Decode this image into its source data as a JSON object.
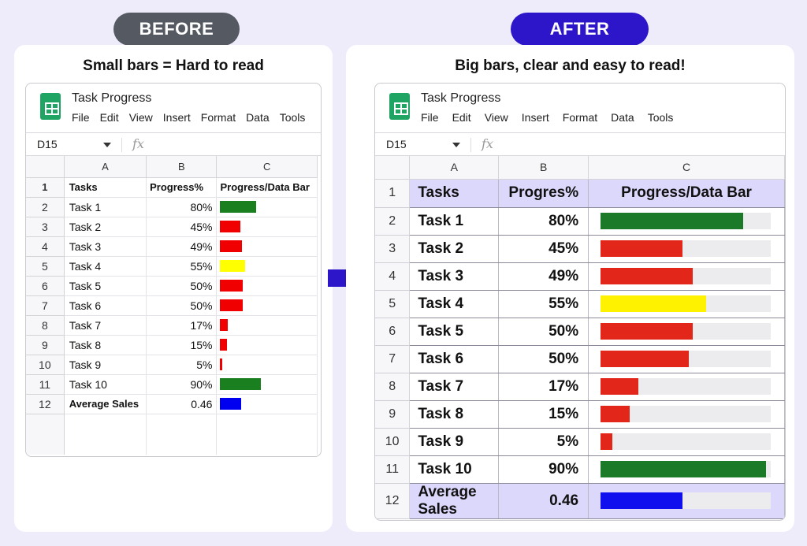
{
  "before": {
    "badge": "BEFORE",
    "caption": "Small bars = Hard to read",
    "sheet": {
      "doc_title": "Task Progress",
      "menu": [
        "File",
        "Edit",
        "View",
        "Insert",
        "Format",
        "Data",
        "Tools"
      ],
      "cell_ref": "D15",
      "fx": "fx",
      "columns": [
        "A",
        "B",
        "C"
      ],
      "header": {
        "num": "1",
        "a": "Tasks",
        "b": "Progress%",
        "c": "Progress/Data Bar"
      },
      "rows": [
        {
          "num": "2",
          "task": "Task 1",
          "value": "80%",
          "fraction": 0.8,
          "color": "#1a7f1e"
        },
        {
          "num": "3",
          "task": "Task 2",
          "value": "45%",
          "fraction": 0.45,
          "color": "#f00000"
        },
        {
          "num": "4",
          "task": "Task 3",
          "value": "49%",
          "fraction": 0.49,
          "color": "#f00000"
        },
        {
          "num": "5",
          "task": "Task 4",
          "value": "55%",
          "fraction": 0.55,
          "color": "#ffff00"
        },
        {
          "num": "6",
          "task": "Task 5",
          "value": "50%",
          "fraction": 0.5,
          "color": "#f00000"
        },
        {
          "num": "7",
          "task": "Task 6",
          "value": "50%",
          "fraction": 0.5,
          "color": "#f00000"
        },
        {
          "num": "8",
          "task": "Task 7",
          "value": "17%",
          "fraction": 0.17,
          "color": "#f00000"
        },
        {
          "num": "9",
          "task": "Task 8",
          "value": "15%",
          "fraction": 0.15,
          "color": "#f00000"
        },
        {
          "num": "10",
          "task": "Task 9",
          "value": "5%",
          "fraction": 0.05,
          "color": "#f00000"
        },
        {
          "num": "11",
          "task": "Task 10",
          "value": "90%",
          "fraction": 0.9,
          "color": "#1a7f1e"
        },
        {
          "num": "12",
          "task": "Average Sales",
          "value": "0.46",
          "fraction": 0.46,
          "color": "#0000f0"
        }
      ]
    }
  },
  "after": {
    "badge": "AFTER",
    "caption": "Big bars, clear and easy to read!",
    "sheet": {
      "doc_title": "Task Progress",
      "menu": [
        "File",
        "Edit",
        "View",
        "Insert",
        "Format",
        "Data",
        "Tools"
      ],
      "cell_ref": "D15",
      "fx": "fx",
      "columns": [
        "A",
        "B",
        "C"
      ],
      "header": {
        "num": "1",
        "a": "Tasks",
        "b": "Progres%",
        "c": "Progress/Data Bar"
      },
      "rows": [
        {
          "num": "2",
          "task": "Task 1",
          "value": "80%",
          "fraction": 0.84,
          "color": "#1a7a28"
        },
        {
          "num": "3",
          "task": "Task 2",
          "value": "45%",
          "fraction": 0.48,
          "color": "#e3261a"
        },
        {
          "num": "4",
          "task": "Task 3",
          "value": "49%",
          "fraction": 0.54,
          "color": "#e3261a"
        },
        {
          "num": "5",
          "task": "Task 4",
          "value": "55%",
          "fraction": 0.62,
          "color": "#fff200"
        },
        {
          "num": "6",
          "task": "Task 5",
          "value": "50%",
          "fraction": 0.54,
          "color": "#e3261a"
        },
        {
          "num": "7",
          "task": "Task 6",
          "value": "50%",
          "fraction": 0.52,
          "color": "#e3261a"
        },
        {
          "num": "8",
          "task": "Task 7",
          "value": "17%",
          "fraction": 0.22,
          "color": "#e3261a"
        },
        {
          "num": "9",
          "task": "Task 8",
          "value": "15%",
          "fraction": 0.17,
          "color": "#e3261a"
        },
        {
          "num": "10",
          "task": "Task 9",
          "value": "5%",
          "fraction": 0.07,
          "color": "#e3261a"
        },
        {
          "num": "11",
          "task": "Task 10",
          "value": "90%",
          "fraction": 0.97,
          "color": "#1a7a28"
        },
        {
          "num": "12",
          "task": "Average Sales",
          "value": "0.46",
          "fraction": 0.48,
          "color": "#1010ee"
        }
      ]
    }
  },
  "colors": {
    "background": "#eeecfb",
    "before_badge": "#555a62",
    "after_badge": "#2d16c9",
    "arrow": "#2d16c9",
    "header_fill": "#dcd8fb"
  }
}
